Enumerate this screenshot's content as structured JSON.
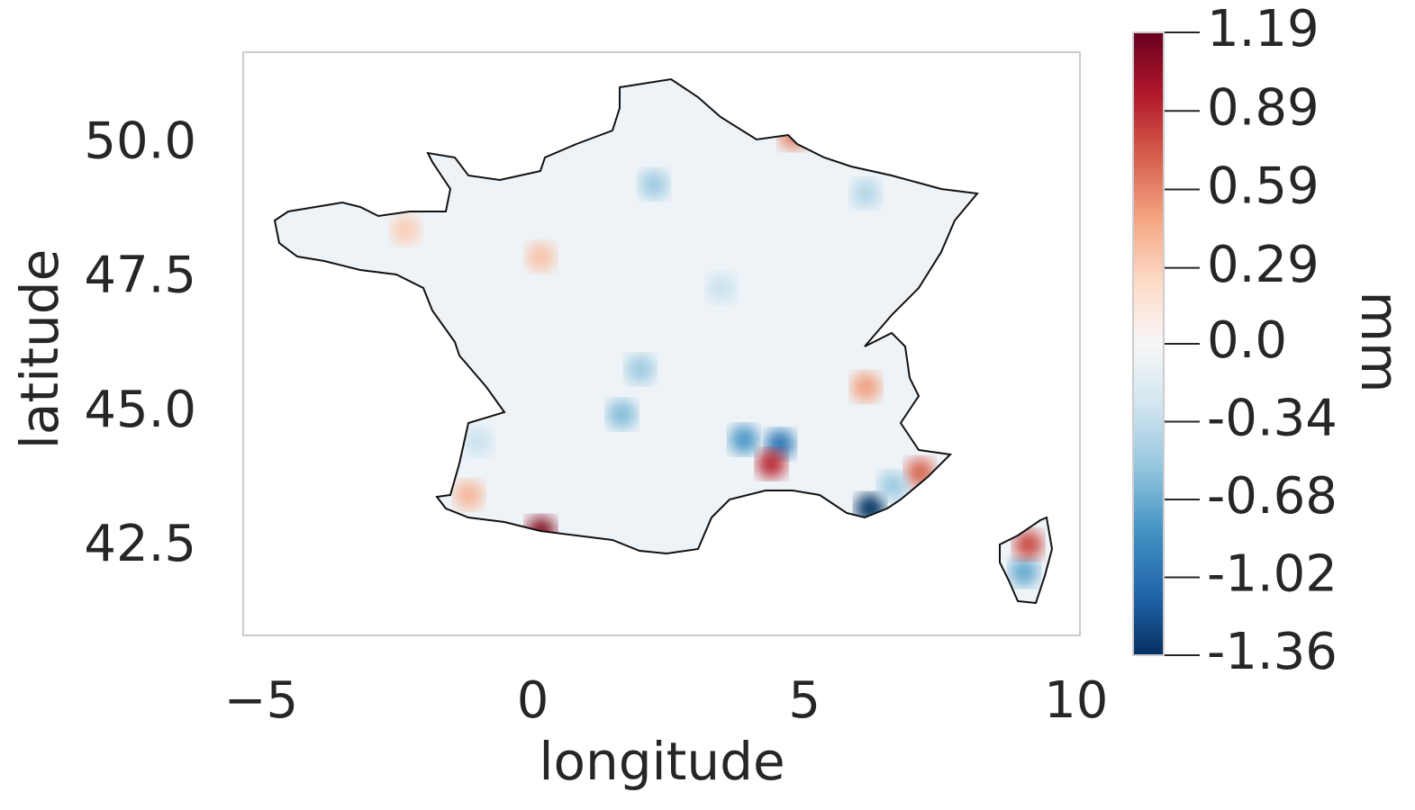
{
  "chart_data": {
    "type": "heatmap-map",
    "xlabel": "longitude",
    "ylabel": "latitude",
    "xlim": [
      -5.33,
      10.07
    ],
    "ylim": [
      40.86,
      51.71
    ],
    "xticks": [
      {
        "value": -5,
        "label": "−5"
      },
      0,
      5,
      10
    ],
    "yticks": [
      42.5,
      {
        "value": 45,
        "label": "45.0"
      },
      47.5,
      {
        "value": 50,
        "label": "50.0"
      }
    ],
    "points": {
      "lon": [
        0.15,
        6.21,
        4.55,
        4.39,
        3.89,
        7.13,
        9.04,
        9.12,
        1.64,
        1.98,
        2.23,
        6.13,
        4.8,
        0.15,
        -2.34,
        6.13,
        6.63,
        -1.18,
        -1.01,
        3.47
      ],
      "lat": [
        42.8,
        43.22,
        44.42,
        44.05,
        44.5,
        43.89,
        42.04,
        42.55,
        44.97,
        45.81,
        49.25,
        49.08,
        50.17,
        47.9,
        48.4,
        45.48,
        43.64,
        43.47,
        44.47,
        47.32
      ],
      "values": [
        1.1,
        -1.36,
        -1.0,
        0.9,
        -0.8,
        0.7,
        -0.7,
        0.8,
        -0.6,
        -0.5,
        -0.5,
        -0.4,
        0.6,
        0.35,
        0.3,
        0.5,
        -0.5,
        0.4,
        -0.3,
        -0.3
      ]
    },
    "colorbar": {
      "label": "mm",
      "lim": [
        -1.36,
        1.19
      ],
      "norm": "two-slope",
      "vcenter": 0,
      "ticks": [
        -1.36,
        -1.02,
        -0.68,
        -0.34,
        {
          "value": 0,
          "label": "0.0"
        },
        0.29,
        0.59,
        0.89,
        1.19
      ],
      "colormap": [
        "#053061",
        "#2166ac",
        "#4393c3",
        "#92c5de",
        "#d1e5f0",
        "#f7f7f7",
        "#fddbc7",
        "#f4a582",
        "#d6604d",
        "#b2182b",
        "#67001f"
      ]
    }
  }
}
